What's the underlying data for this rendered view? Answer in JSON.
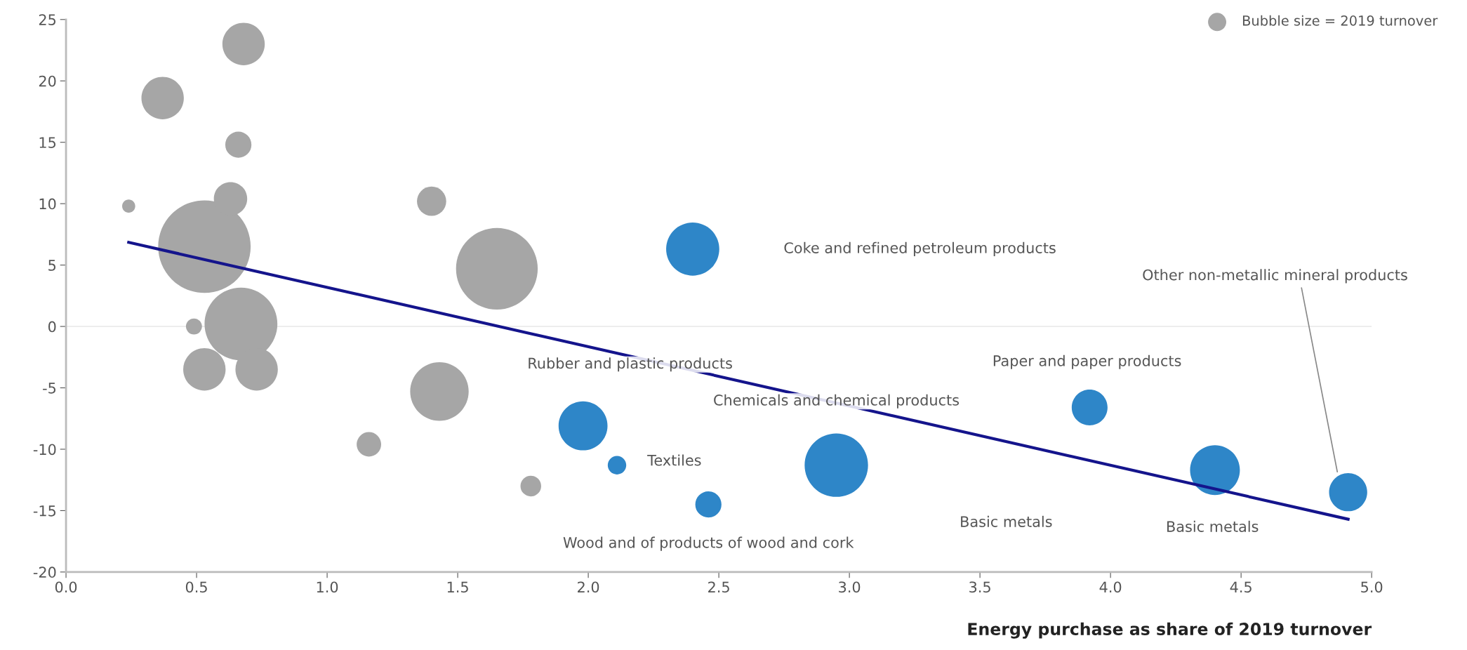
{
  "chart_data": {
    "type": "bubble",
    "xlabel": "Energy purchase as share of 2019 turnover",
    "series": [
      {
        "name": "Bubble size = 2019 turnover",
        "color": "#a6a6a6",
        "x": [
          0.68,
          0.37,
          0.66,
          0.24,
          0.53,
          0.63,
          0.67,
          0.49,
          0.53,
          0.73,
          1.4,
          1.65,
          1.43,
          1.16,
          1.78
        ],
        "values": [
          23.0,
          18.6,
          14.8,
          9.8,
          6.5,
          10.4,
          0.2,
          0.0,
          -3.5,
          -3.5,
          10.2,
          4.7,
          -5.3,
          -9.6,
          -13.0
        ],
        "sizes": [
          0.21,
          0.21,
          0.08,
          0.02,
          1,
          0.13,
          0.62,
          0.03,
          0.21,
          0.21,
          0.1,
          0.78,
          0.4,
          0.07,
          0.05
        ]
      },
      {
        "color": "#2e86c8",
        "x": [
          2.4,
          1.98,
          2.11,
          2.46,
          2.95,
          3.92,
          4.4,
          4.91
        ],
        "values": [
          6.3,
          -8.1,
          -11.3,
          -14.5,
          -11.3,
          -6.6,
          -11.7,
          -13.5
        ],
        "sizes": [
          0.33,
          0.28,
          0.04,
          0.08,
          0.47,
          0.15,
          0.29,
          0.17
        ]
      },
      {
        "type": "line",
        "color": "#14148c",
        "x": [
          0.24,
          4.91
        ],
        "values": [
          6.85,
          -15.7
        ]
      }
    ],
    "annotations": [
      "Coke and refined petroleum products",
      {
        "text": "Other non-metallic mineral products",
        "x": 4.87,
        "y": -12.0
      },
      "Rubber and plastic products",
      "Paper and paper products",
      "Chemicals and chemical products",
      "Textiles",
      "Wood and of products of wood and cork",
      "Basic metals",
      "Basic metals"
    ],
    "ref_lines": [
      {
        "axis": "y",
        "value": 0,
        "color": "#ededed"
      }
    ],
    "xlim": [
      0,
      5
    ],
    "ylim": [
      -20,
      25
    ],
    "xticks": [
      {
        "value": 0,
        "label": "0.0"
      },
      {
        "value": 0.5,
        "label": "0.5"
      },
      {
        "value": 1,
        "label": "1.0"
      },
      {
        "value": 1.5,
        "label": "1.5"
      },
      {
        "value": 2,
        "label": "2.0"
      },
      {
        "value": 2.5,
        "label": "2.5"
      },
      {
        "value": 3,
        "label": "3.0"
      },
      {
        "value": 3.5,
        "label": "3.5"
      },
      {
        "value": 4,
        "label": "4.0"
      },
      {
        "value": 4.5,
        "label": "4.5"
      },
      {
        "value": 5,
        "label": "5.0"
      }
    ],
    "yticks": [
      -20,
      -15,
      -10,
      -5,
      0,
      5,
      10,
      15,
      20,
      25
    ],
    "legend": "top right",
    "grid": false
  }
}
